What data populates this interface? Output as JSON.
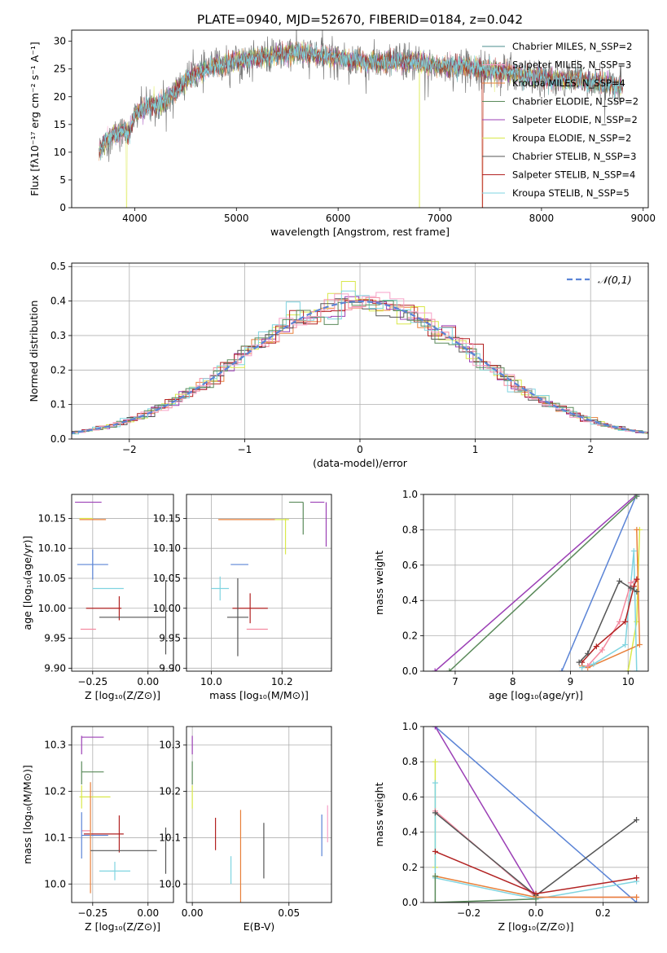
{
  "figure_title": "PLATE=0940, MJD=52670, FIBERID=0184, z=0.042",
  "chart_data": [
    {
      "id": "spectrum",
      "type": "line",
      "xlabel": "wavelength [Angstrom, rest frame]",
      "ylabel": "Flux [fλ10⁻¹⁷ erg cm⁻² s⁻¹ A⁻¹]",
      "xlim": [
        3380,
        9050
      ],
      "ylim": [
        0,
        32
      ],
      "xticks": [
        4000,
        5000,
        6000,
        7000,
        8000,
        9000
      ],
      "yticks": [
        0,
        5,
        10,
        15,
        20,
        25,
        30
      ],
      "grid": false,
      "legend_position": "top-right",
      "continuum": {
        "x": [
          3650,
          3700,
          3800,
          3900,
          3950,
          4000,
          4100,
          4200,
          4300,
          4400,
          4500,
          4700,
          4900,
          5000,
          5200,
          5400,
          5600,
          5800,
          6000,
          6200,
          6400,
          6600,
          6800,
          7000,
          7200,
          7400,
          7600,
          7800,
          8000,
          8200,
          8400,
          8600,
          8800
        ],
        "y": [
          10,
          12,
          13,
          14,
          13,
          17,
          18,
          18.5,
          19,
          21,
          23,
          25,
          26,
          26.5,
          27,
          27.5,
          28,
          27.5,
          27,
          26.5,
          26,
          26.5,
          26,
          25.5,
          25.5,
          25,
          24.5,
          24,
          23.5,
          23,
          23,
          22.5,
          22
        ]
      },
      "legend": [
        {
          "label": "Chabrier MILES, N_SSP=2",
          "color": "#4a8c8c"
        },
        {
          "label": "Salpeter MILES, N_SSP=3",
          "color": "#f7a1c8"
        },
        {
          "label": "Kroupa MILES, N_SSP=4",
          "color": "#e8803a"
        },
        {
          "label": "Chabrier ELODIE, N_SSP=2",
          "color": "#5a8a5a"
        },
        {
          "label": "Salpeter ELODIE, N_SSP=2",
          "color": "#9b3fb5"
        },
        {
          "label": "Kroupa ELODIE, N_SSP=2",
          "color": "#d9e84a"
        },
        {
          "label": "Chabrier STELIB, N_SSP=3",
          "color": "#555555"
        },
        {
          "label": "Salpeter STELIB, N_SSP=4",
          "color": "#b22222"
        },
        {
          "label": "Kroupa STELIB, N_SSP=5",
          "color": "#7fd4e0"
        }
      ]
    },
    {
      "id": "residuals",
      "type": "line",
      "xlabel": "(data-model)/error",
      "ylabel": "Normed distribution",
      "xlim": [
        -2.5,
        2.5
      ],
      "ylim": [
        0,
        0.51
      ],
      "xticks": [
        -2,
        -1,
        0,
        1,
        2
      ],
      "yticks": [
        0.0,
        0.1,
        0.2,
        0.3,
        0.4,
        0.5
      ],
      "grid": true,
      "legend_position": "top-right",
      "reference_curve": {
        "label": "𝒩(0,1)",
        "color": "#5b84d6",
        "style": "dashed"
      },
      "step_colors": [
        "#e8803a",
        "#9b3fb5",
        "#d9e84a",
        "#f48aa0",
        "#555555",
        "#b22222",
        "#7fd4e0",
        "#5a8a5a",
        "#f7a1c8"
      ]
    },
    {
      "id": "age-vs-Z",
      "type": "scatter",
      "xlabel": "Z [log₁₀(Z/Z⊙)]",
      "ylabel": "age  [log₁₀(age/yr)]",
      "xlim": [
        -0.345,
        0.115
      ],
      "ylim": [
        9.895,
        10.19
      ],
      "xticks": [
        -0.25,
        0.0
      ],
      "yticks": [
        9.9,
        9.95,
        10.0,
        10.05,
        10.1,
        10.15
      ],
      "grid": true,
      "points": [
        {
          "x": -0.27,
          "y": 10.177,
          "xerr": 0.06,
          "yerr": 0.0,
          "color": "#9b3fb5"
        },
        {
          "x": -0.25,
          "y": 10.148,
          "xerr": 0.06,
          "yerr": 0.0,
          "color": "#e8803a"
        },
        {
          "x": -0.28,
          "y": 10.15,
          "xerr": 0.03,
          "yerr": 0.0,
          "color": "#d9e84a"
        },
        {
          "x": -0.25,
          "y": 10.073,
          "xerr": 0.07,
          "yerr": 0.025,
          "color": "#5b84d6"
        },
        {
          "x": -0.18,
          "y": 10.033,
          "xerr": 0.07,
          "yerr": 0.0,
          "color": "#7fd4e0"
        },
        {
          "x": -0.2,
          "y": 10.0,
          "xerr": 0.08,
          "yerr": 0.0,
          "color": "#b22222"
        },
        {
          "x": -0.13,
          "y": 10.0,
          "xerr": 0.0,
          "yerr": 0.02,
          "color": "#b22222"
        },
        {
          "x": -0.27,
          "y": 9.965,
          "xerr": 0.035,
          "yerr": 0.0,
          "color": "#f48aa0"
        },
        {
          "x": -0.07,
          "y": 9.985,
          "xerr": 0.15,
          "yerr": 0.0,
          "color": "#555555"
        },
        {
          "x": 0.08,
          "y": 9.985,
          "xerr": 0.0,
          "yerr": 0.062,
          "color": "#555555"
        }
      ]
    },
    {
      "id": "age-vs-mass",
      "type": "scatter",
      "xlabel": "mass [log₁₀(M/M⊙)]",
      "ylabel": "",
      "xlim": [
        9.93,
        10.34
      ],
      "ylim": [
        9.895,
        10.19
      ],
      "xticks": [
        10.0,
        10.2
      ],
      "yticks": [
        9.9,
        9.95,
        10.0,
        10.05,
        10.1,
        10.15
      ],
      "grid": true,
      "points": [
        {
          "x": 10.3,
          "y": 10.177,
          "xerr": 0.02,
          "yerr": 0.0,
          "color": "#9b3fb5"
        },
        {
          "x": 10.325,
          "y": 10.14,
          "xerr": 0.0,
          "yerr": 0.037,
          "color": "#9b3fb5"
        },
        {
          "x": 10.24,
          "y": 10.177,
          "xerr": 0.02,
          "yerr": 0.0,
          "color": "#5a8a5a"
        },
        {
          "x": 10.26,
          "y": 10.15,
          "xerr": 0.0,
          "yerr": 0.027,
          "color": "#5a8a5a"
        },
        {
          "x": 10.1,
          "y": 10.148,
          "xerr": 0.08,
          "yerr": 0.0,
          "color": "#e8803a"
        },
        {
          "x": 10.2,
          "y": 10.148,
          "xerr": 0.02,
          "yerr": 0.0,
          "color": "#d9e84a"
        },
        {
          "x": 10.21,
          "y": 10.12,
          "xerr": 0.0,
          "yerr": 0.03,
          "color": "#d9e84a"
        },
        {
          "x": 10.08,
          "y": 10.073,
          "xerr": 0.025,
          "yerr": 0.0,
          "color": "#5b84d6"
        },
        {
          "x": 10.025,
          "y": 10.033,
          "xerr": 0.025,
          "yerr": 0.02,
          "color": "#7fd4e0"
        },
        {
          "x": 10.11,
          "y": 10.0,
          "xerr": 0.05,
          "yerr": 0.025,
          "color": "#b22222"
        },
        {
          "x": 10.075,
          "y": 9.985,
          "xerr": 0.03,
          "yerr": 0.065,
          "color": "#555555"
        },
        {
          "x": 10.13,
          "y": 9.965,
          "xerr": 0.03,
          "yerr": 0.0,
          "color": "#f48aa0"
        }
      ]
    },
    {
      "id": "massweight-vs-age",
      "type": "line",
      "xlabel": "age  [log₁₀(age/yr)]",
      "ylabel": "mass weight",
      "xlim": [
        6.45,
        10.35
      ],
      "ylim": [
        0,
        1.0
      ],
      "xticks": [
        7,
        8,
        9,
        10
      ],
      "yticks": [
        0.0,
        0.2,
        0.4,
        0.6,
        0.8,
        1.0
      ],
      "grid": true,
      "series": [
        {
          "color": "#5b84d6",
          "x": [
            8.85,
            10.15,
            10.15
          ],
          "y": [
            0.0,
            1.0,
            0.99
          ]
        },
        {
          "color": "#9b3fb5",
          "x": [
            6.65,
            10.15,
            10.15
          ],
          "y": [
            0.0,
            1.0,
            0.99
          ]
        },
        {
          "color": "#5a8a5a",
          "x": [
            6.9,
            10.15,
            10.15
          ],
          "y": [
            0.0,
            0.99,
            1.0
          ]
        },
        {
          "color": "#d9e84a",
          "x": [
            10.0,
            10.15,
            10.2
          ],
          "y": [
            0.0,
            0.28,
            0.8
          ]
        },
        {
          "color": "#e8803a",
          "x": [
            9.2,
            9.3,
            10.2,
            10.15
          ],
          "y": [
            0.03,
            0.02,
            0.15,
            0.8
          ]
        },
        {
          "color": "#7fd4e0",
          "x": [
            9.2,
            9.4,
            9.95,
            10.1,
            10.15
          ],
          "y": [
            0.02,
            0.04,
            0.15,
            0.68,
            0.0
          ]
        },
        {
          "color": "#f48aa0",
          "x": [
            9.3,
            9.55,
            9.85,
            10.05,
            10.15
          ],
          "y": [
            0.03,
            0.12,
            0.28,
            0.5,
            0.52
          ]
        },
        {
          "color": "#b22222",
          "x": [
            9.2,
            9.45,
            9.95,
            10.1,
            10.15
          ],
          "y": [
            0.05,
            0.14,
            0.28,
            0.48,
            0.52
          ]
        },
        {
          "color": "#555555",
          "x": [
            9.15,
            9.3,
            9.85,
            10.05,
            10.15
          ],
          "y": [
            0.05,
            0.1,
            0.51,
            0.47,
            0.45
          ]
        }
      ]
    },
    {
      "id": "mass-vs-Z",
      "type": "scatter",
      "xlabel": "Z [log₁₀(Z/Z⊙)]",
      "ylabel": "mass [log₁₀(M/M⊙)]",
      "xlim": [
        -0.345,
        0.115
      ],
      "ylim": [
        9.96,
        10.34
      ],
      "xticks": [
        -0.25,
        0.0
      ],
      "yticks": [
        10.0,
        10.1,
        10.2,
        10.3
      ],
      "grid": true,
      "points": [
        {
          "x": -0.25,
          "y": 10.317,
          "xerr": 0.05,
          "yerr": 0.0,
          "color": "#9b3fb5"
        },
        {
          "x": -0.3,
          "y": 10.3,
          "xerr": 0.0,
          "yerr": 0.02,
          "color": "#9b3fb5"
        },
        {
          "x": -0.25,
          "y": 10.242,
          "xerr": 0.05,
          "yerr": 0.0,
          "color": "#5a8a5a"
        },
        {
          "x": -0.3,
          "y": 10.24,
          "xerr": 0.0,
          "yerr": 0.025,
          "color": "#5a8a5a"
        },
        {
          "x": -0.24,
          "y": 10.188,
          "xerr": 0.07,
          "yerr": 0.0,
          "color": "#d9e84a"
        },
        {
          "x": -0.3,
          "y": 10.188,
          "xerr": 0.0,
          "yerr": 0.025,
          "color": "#d9e84a"
        },
        {
          "x": -0.28,
          "y": 10.115,
          "xerr": 0.02,
          "yerr": 0.0,
          "color": "#f48aa0"
        },
        {
          "x": -0.2,
          "y": 10.108,
          "xerr": 0.09,
          "yerr": 0.0,
          "color": "#b22222"
        },
        {
          "x": -0.13,
          "y": 10.108,
          "xerr": 0.0,
          "yerr": 0.04,
          "color": "#b22222"
        },
        {
          "x": -0.24,
          "y": 10.105,
          "xerr": 0.06,
          "yerr": 0.0,
          "color": "#5b84d6"
        },
        {
          "x": -0.3,
          "y": 10.105,
          "xerr": 0.0,
          "yerr": 0.05,
          "color": "#5b84d6"
        },
        {
          "x": -0.26,
          "y": 10.1,
          "xerr": 0.0,
          "yerr": 0.12,
          "color": "#e8803a"
        },
        {
          "x": -0.11,
          "y": 10.072,
          "xerr": 0.15,
          "yerr": 0.0,
          "color": "#555555"
        },
        {
          "x": 0.08,
          "y": 10.072,
          "xerr": 0.0,
          "yerr": 0.05,
          "color": "#555555"
        },
        {
          "x": -0.15,
          "y": 10.028,
          "xerr": 0.07,
          "yerr": 0.02,
          "color": "#7fd4e0"
        }
      ]
    },
    {
      "id": "mass-vs-EBV",
      "type": "scatter",
      "xlabel": "E(B-V)",
      "ylabel": "",
      "xlim": [
        -0.003,
        0.072
      ],
      "ylim": [
        9.96,
        10.34
      ],
      "xticks": [
        0.0,
        0.05
      ],
      "yticks": [
        10.0,
        10.1,
        10.2,
        10.3
      ],
      "grid": true,
      "points": [
        {
          "x": 0.0,
          "y": 10.3,
          "xerr": 0.0,
          "yerr": 0.02,
          "color": "#9b3fb5"
        },
        {
          "x": 0.0,
          "y": 10.24,
          "xerr": 0.0,
          "yerr": 0.025,
          "color": "#5a8a5a"
        },
        {
          "x": 0.0,
          "y": 10.188,
          "xerr": 0.0,
          "yerr": 0.025,
          "color": "#d9e84a"
        },
        {
          "x": 0.012,
          "y": 10.108,
          "xerr": 0.0,
          "yerr": 0.035,
          "color": "#b22222"
        },
        {
          "x": 0.02,
          "y": 10.03,
          "xerr": 0.0,
          "yerr": 0.03,
          "color": "#7fd4e0"
        },
        {
          "x": 0.025,
          "y": 10.06,
          "xerr": 0.0,
          "yerr": 0.1,
          "color": "#e8803a"
        },
        {
          "x": 0.037,
          "y": 10.072,
          "xerr": 0.0,
          "yerr": 0.06,
          "color": "#555555"
        },
        {
          "x": 0.067,
          "y": 10.105,
          "xerr": 0.0,
          "yerr": 0.045,
          "color": "#5b84d6"
        },
        {
          "x": 0.07,
          "y": 10.13,
          "xerr": 0.0,
          "yerr": 0.04,
          "color": "#f7a1c8"
        }
      ]
    },
    {
      "id": "massweight-vs-Z",
      "type": "line",
      "xlabel": "Z [log₁₀(Z/Z⊙)]",
      "ylabel": "mass weight",
      "xlim": [
        -0.335,
        0.335
      ],
      "ylim": [
        0,
        1.0
      ],
      "xticks": [
        -0.2,
        0.0,
        0.2
      ],
      "yticks": [
        0.0,
        0.2,
        0.4,
        0.6,
        0.8,
        1.0
      ],
      "grid": true,
      "series": [
        {
          "color": "#5b84d6",
          "x": [
            -0.3,
            0.3
          ],
          "y": [
            1.0,
            0.0
          ]
        },
        {
          "color": "#9b3fb5",
          "x": [
            -0.3,
            0.0
          ],
          "y": [
            1.0,
            0.04
          ]
        },
        {
          "color": "#d9e84a",
          "x": [
            -0.3,
            -0.3
          ],
          "y": [
            0.8,
            0.2
          ]
        },
        {
          "color": "#7fd4e0",
          "x": [
            -0.3,
            -0.3,
            0.0,
            0.3
          ],
          "y": [
            0.68,
            0.14,
            0.02,
            0.12
          ]
        },
        {
          "color": "#f48aa0",
          "x": [
            -0.3,
            0.0,
            0.3
          ],
          "y": [
            0.52,
            0.03,
            0.03
          ]
        },
        {
          "color": "#555555",
          "x": [
            -0.3,
            0.0,
            0.3
          ],
          "y": [
            0.51,
            0.04,
            0.47
          ]
        },
        {
          "color": "#b22222",
          "x": [
            -0.3,
            0.0,
            0.3
          ],
          "y": [
            0.29,
            0.05,
            0.14
          ]
        },
        {
          "color": "#e8803a",
          "x": [
            -0.3,
            0.0,
            0.3
          ],
          "y": [
            0.15,
            0.03,
            0.03
          ]
        },
        {
          "color": "#5a8a5a",
          "x": [
            -0.3,
            -0.3,
            0.0
          ],
          "y": [
            0.15,
            0.0,
            0.02
          ]
        }
      ]
    }
  ]
}
